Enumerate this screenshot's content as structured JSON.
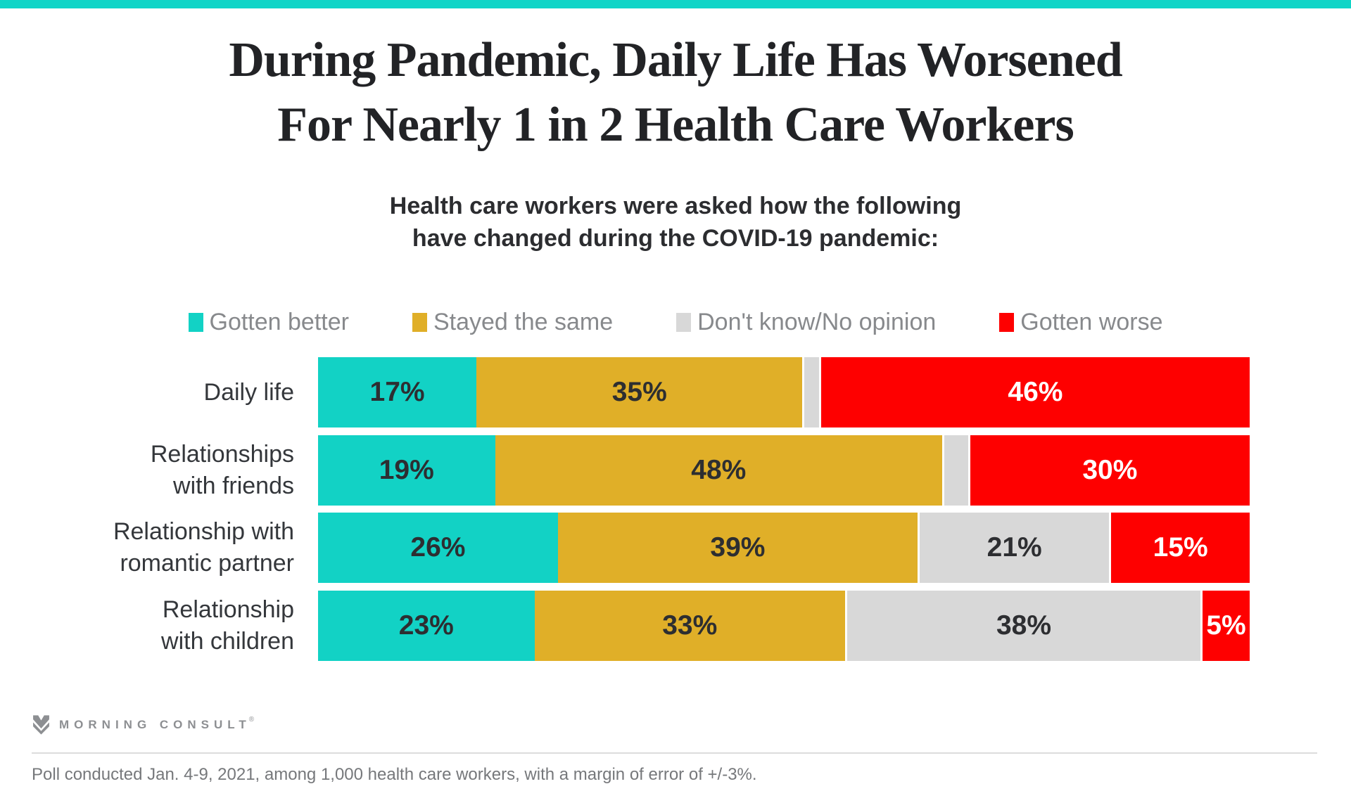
{
  "banner": {
    "accent_color": "#10d5c7"
  },
  "title": {
    "line1": "During Pandemic, Daily Life Has Worsened",
    "line2": "For Nearly 1 in 2 Health Care Workers"
  },
  "subtitle": {
    "line1": "Health care workers were asked how the following",
    "line2": "have changed during the COVID-19 pandemic:"
  },
  "chart_data": {
    "type": "bar",
    "stacked": true,
    "orientation": "horizontal",
    "xlim": [
      0,
      100
    ],
    "grid": false,
    "legend_position": "top",
    "categories": [
      "Daily life",
      "Relationships with friends",
      "Relationship with romantic partner",
      "Relationship with children"
    ],
    "category_lines": [
      [
        "Daily life"
      ],
      [
        "Relationships",
        "with friends"
      ],
      [
        "Relationship with",
        "romantic partner"
      ],
      [
        "Relationship",
        "with children"
      ]
    ],
    "series": [
      {
        "key": "better",
        "name": "Gotten better",
        "color": "#12d2c5",
        "label_color": "#2d2e31",
        "values": [
          17,
          19,
          26,
          23
        ]
      },
      {
        "key": "same",
        "name": "Stayed the same",
        "color": "#e0af28",
        "label_color": "#2d2e31",
        "values": [
          35,
          48,
          39,
          33
        ]
      },
      {
        "key": "dk",
        "name": "Don't know/No opinion",
        "color": "#d8d8d8",
        "label_color": "#2d2e31",
        "values": [
          2,
          3,
          21,
          38
        ]
      },
      {
        "key": "worse",
        "name": "Gotten worse",
        "color": "#fe0000",
        "label_color": "#ffffff",
        "values": [
          46,
          30,
          15,
          5
        ]
      }
    ],
    "value_suffix": "%",
    "min_label_value": 5
  },
  "footer": {
    "logo_text": "MORNING CONSULT",
    "registered_mark": "®",
    "note": "Poll conducted Jan. 4-9, 2021, among 1,000 health care workers, with a margin of error of +/-3%."
  }
}
